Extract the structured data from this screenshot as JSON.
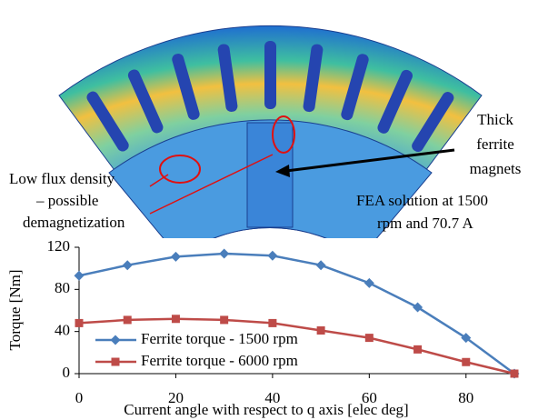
{
  "annotations": {
    "magnets": [
      "Thick",
      "ferrite",
      "magnets"
    ],
    "flux": [
      "Low flux density",
      "– possible",
      "demagnetization"
    ],
    "fea": [
      "FEA solution at 1500",
      "rpm and 70.7 A"
    ]
  },
  "chart_data": {
    "type": "line",
    "xlabel": "Current angle with respect to q axis [elec deg]",
    "ylabel": "Torque [Nm]",
    "x": [
      0,
      10,
      20,
      30,
      40,
      50,
      60,
      70,
      80,
      90
    ],
    "series": [
      {
        "name": "Ferrite torque - 1500 rpm",
        "color": "#4a7ebb",
        "marker": "diamond",
        "values": [
          93,
          103,
          111,
          114,
          112,
          103,
          86,
          63,
          34,
          0
        ]
      },
      {
        "name": "Ferrite torque - 6000 rpm",
        "color": "#be4b48",
        "marker": "square",
        "values": [
          48,
          51,
          52,
          51,
          48,
          41,
          34,
          23,
          11,
          0
        ]
      }
    ],
    "xlim": [
      0,
      90
    ],
    "xticks": [
      0,
      20,
      40,
      60,
      80
    ],
    "ylim": [
      0,
      120
    ],
    "yticks": [
      0,
      40,
      80,
      120
    ],
    "grid": false,
    "legend": "lower left"
  }
}
